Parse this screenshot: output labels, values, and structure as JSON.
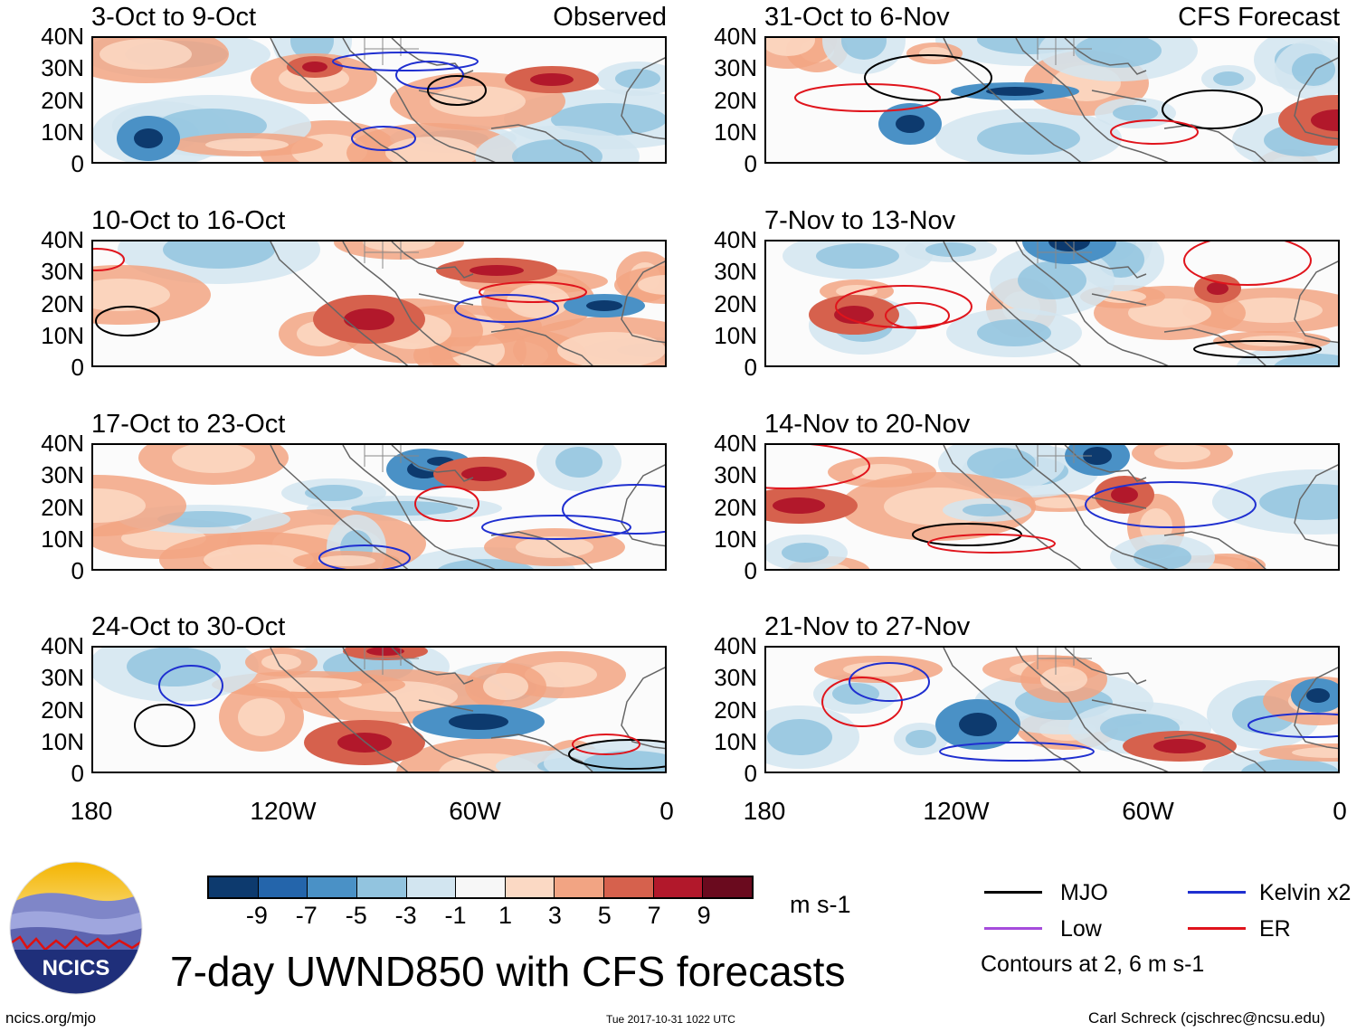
{
  "colors": {
    "mjo": "#000000",
    "kelvin": "#1f2fd0",
    "er": "#e0141c",
    "low": "#a64cdc",
    "scale": [
      "#0d3a6e",
      "#2465ab",
      "#4a91c6",
      "#92c4df",
      "#d2e5f0",
      "#f7f7f7",
      "#fbd9c4",
      "#f2a483",
      "#d6614d",
      "#b2182b",
      "#6a0a1e"
    ]
  },
  "panels": [
    {
      "title": "3-Oct to 9-Oct",
      "corner": "Observed"
    },
    {
      "title": "31-Oct to 6-Nov",
      "corner": "CFS Forecast"
    },
    {
      "title": "10-Oct to 16-Oct",
      "corner": ""
    },
    {
      "title": "7-Nov to 13-Nov",
      "corner": ""
    },
    {
      "title": "17-Oct to 23-Oct",
      "corner": ""
    },
    {
      "title": "14-Nov to 20-Nov",
      "corner": ""
    },
    {
      "title": "24-Oct to 30-Oct",
      "corner": ""
    },
    {
      "title": "21-Nov to 27-Nov",
      "corner": ""
    }
  ],
  "axes": {
    "lat_labels": [
      "40N",
      "30N",
      "20N",
      "10N",
      "0"
    ],
    "lon_labels": [
      "180",
      "120W",
      "60W",
      "0"
    ]
  },
  "colorbar": {
    "ticks": [
      "-9",
      "-7",
      "-5",
      "-3",
      "-1",
      "1",
      "3",
      "5",
      "7",
      "9"
    ],
    "unit": "m s-1"
  },
  "legend": {
    "mjo": "MJO",
    "kelvin": "Kelvin x2",
    "low": "Low",
    "er": "ER",
    "contours_note": "Contours at 2, 6 m s-1"
  },
  "logo_text": "NCICS",
  "main_title": "7-day UWND850 with CFS forecasts",
  "footer": {
    "left": "ncics.org/mjo",
    "center": "Tue 2017-10-31 1022 UTC",
    "right": "Carl Schreck (cjschrec@ncsu.edu)"
  }
}
